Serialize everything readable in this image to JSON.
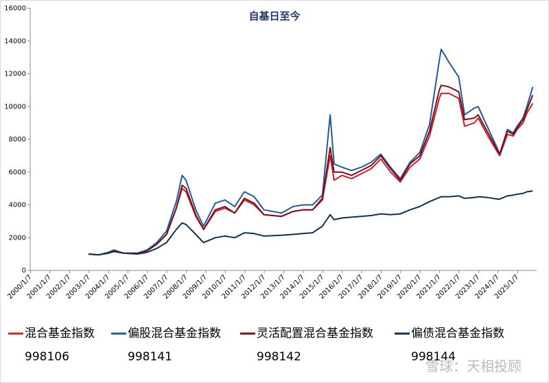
{
  "chart_data": {
    "type": "line",
    "title": "自基日至今",
    "x": [
      2003.0,
      2003.5,
      2004.0,
      2004.3,
      2004.8,
      2005.5,
      2006.0,
      2006.5,
      2007.0,
      2007.5,
      2007.8,
      2008.0,
      2008.5,
      2008.9,
      2009.5,
      2010.0,
      2010.5,
      2011.0,
      2011.5,
      2012.0,
      2012.9,
      2013.5,
      2014.0,
      2014.5,
      2015.0,
      2015.4,
      2015.6,
      2016.0,
      2016.5,
      2017.0,
      2017.5,
      2018.0,
      2018.5,
      2019.0,
      2019.5,
      2020.0,
      2020.5,
      2021.0,
      2021.1,
      2021.5,
      2022.0,
      2022.3,
      2022.8,
      2023.0,
      2023.5,
      2024.0,
      2024.1,
      2024.5,
      2024.8,
      2025.0,
      2025.3,
      2025.5,
      2025.8
    ],
    "series": [
      {
        "name": "混合基金指数",
        "code": "998106",
        "color": "#c8202e",
        "values": [
          1000,
          950,
          1050,
          1200,
          1050,
          1050,
          1200,
          1600,
          2200,
          3800,
          5000,
          4800,
          3300,
          2500,
          3600,
          3800,
          3500,
          4300,
          4000,
          3400,
          3300,
          3600,
          3700,
          3700,
          4300,
          7000,
          5500,
          5800,
          5600,
          5900,
          6200,
          6800,
          6000,
          5400,
          6300,
          6800,
          8200,
          10500,
          10800,
          10800,
          10500,
          8800,
          9000,
          9300,
          8200,
          7200,
          7000,
          8300,
          8200,
          8600,
          9000,
          9600,
          10200
        ]
      },
      {
        "name": "偏股混合基金指数",
        "code": "998141",
        "color": "#1f5a9b",
        "values": [
          1000,
          950,
          1100,
          1250,
          1050,
          1050,
          1250,
          1700,
          2400,
          4200,
          5800,
          5500,
          3700,
          2700,
          4100,
          4300,
          3900,
          4800,
          4500,
          3700,
          3500,
          3900,
          4000,
          4000,
          4600,
          9500,
          6500,
          6300,
          6100,
          6300,
          6600,
          7100,
          6300,
          5600,
          6600,
          7200,
          8900,
          12800,
          13500,
          12700,
          11800,
          9500,
          9900,
          10000,
          8700,
          7400,
          7100,
          8600,
          8400,
          8800,
          9300,
          10000,
          11200
        ]
      },
      {
        "name": "灵活配置混合基金指数",
        "code": "998142",
        "color": "#7a0f1c",
        "values": [
          1000,
          950,
          1050,
          1200,
          1050,
          1050,
          1200,
          1600,
          2200,
          3800,
          5200,
          5000,
          3400,
          2500,
          3700,
          3900,
          3500,
          4400,
          4100,
          3400,
          3300,
          3600,
          3700,
          3700,
          4400,
          7500,
          6000,
          6000,
          5800,
          6100,
          6400,
          7000,
          6200,
          5500,
          6500,
          7000,
          8500,
          11000,
          11300,
          11200,
          10900,
          9200,
          9300,
          9500,
          8400,
          7300,
          7100,
          8500,
          8300,
          8700,
          9200,
          9800,
          10700
        ]
      },
      {
        "name": "偏债混合基金指数",
        "code": "998144",
        "color": "#13304f",
        "values": [
          1000,
          950,
          1050,
          1150,
          1050,
          1000,
          1100,
          1350,
          1700,
          2500,
          2900,
          2800,
          2200,
          1700,
          2000,
          2100,
          2000,
          2300,
          2250,
          2100,
          2150,
          2200,
          2250,
          2300,
          2700,
          3400,
          3100,
          3200,
          3250,
          3300,
          3350,
          3450,
          3400,
          3450,
          3700,
          3900,
          4200,
          4450,
          4500,
          4500,
          4550,
          4400,
          4450,
          4500,
          4450,
          4350,
          4350,
          4550,
          4600,
          4650,
          4700,
          4800,
          4850
        ]
      }
    ],
    "xlim": [
      2000,
      2026
    ],
    "xticks": [
      {
        "value": 2000.02,
        "label": "2000/1/7"
      },
      {
        "value": 2001.02,
        "label": "2001/1/7"
      },
      {
        "value": 2002.02,
        "label": "2002/1/7"
      },
      {
        "value": 2003.02,
        "label": "2003/1/7"
      },
      {
        "value": 2004.02,
        "label": "2004/1/7"
      },
      {
        "value": 2005.02,
        "label": "2005/1/7"
      },
      {
        "value": 2006.02,
        "label": "2006/1/7"
      },
      {
        "value": 2007.02,
        "label": "2007/1/7"
      },
      {
        "value": 2008.02,
        "label": "2008/1/7"
      },
      {
        "value": 2009.02,
        "label": "2009/1/7"
      },
      {
        "value": 2010.02,
        "label": "2010/1/7"
      },
      {
        "value": 2011.02,
        "label": "2011/1/7"
      },
      {
        "value": 2012.02,
        "label": "2012/1/7"
      },
      {
        "value": 2013.02,
        "label": "2013/1/7"
      },
      {
        "value": 2014.02,
        "label": "2014/1/7"
      },
      {
        "value": 2015.02,
        "label": "2015/1/7"
      },
      {
        "value": 2016.02,
        "label": "2016/1/7"
      },
      {
        "value": 2017.02,
        "label": "2017/1/7"
      },
      {
        "value": 2018.02,
        "label": "2018/1/7"
      },
      {
        "value": 2019.02,
        "label": "2019/1/7"
      },
      {
        "value": 2020.02,
        "label": "2020/1/7"
      },
      {
        "value": 2021.02,
        "label": "2021/1/7"
      },
      {
        "value": 2022.02,
        "label": "2022/1/7"
      },
      {
        "value": 2023.02,
        "label": "2023/1/7"
      },
      {
        "value": 2024.02,
        "label": "2024/1/7"
      },
      {
        "value": 2025.02,
        "label": "2025/1/7"
      }
    ],
    "ylim": [
      0,
      16000
    ],
    "yticks": [
      0,
      2000,
      4000,
      6000,
      8000,
      10000,
      12000,
      14000,
      16000
    ],
    "watermark": "雪球：天相投顾"
  }
}
